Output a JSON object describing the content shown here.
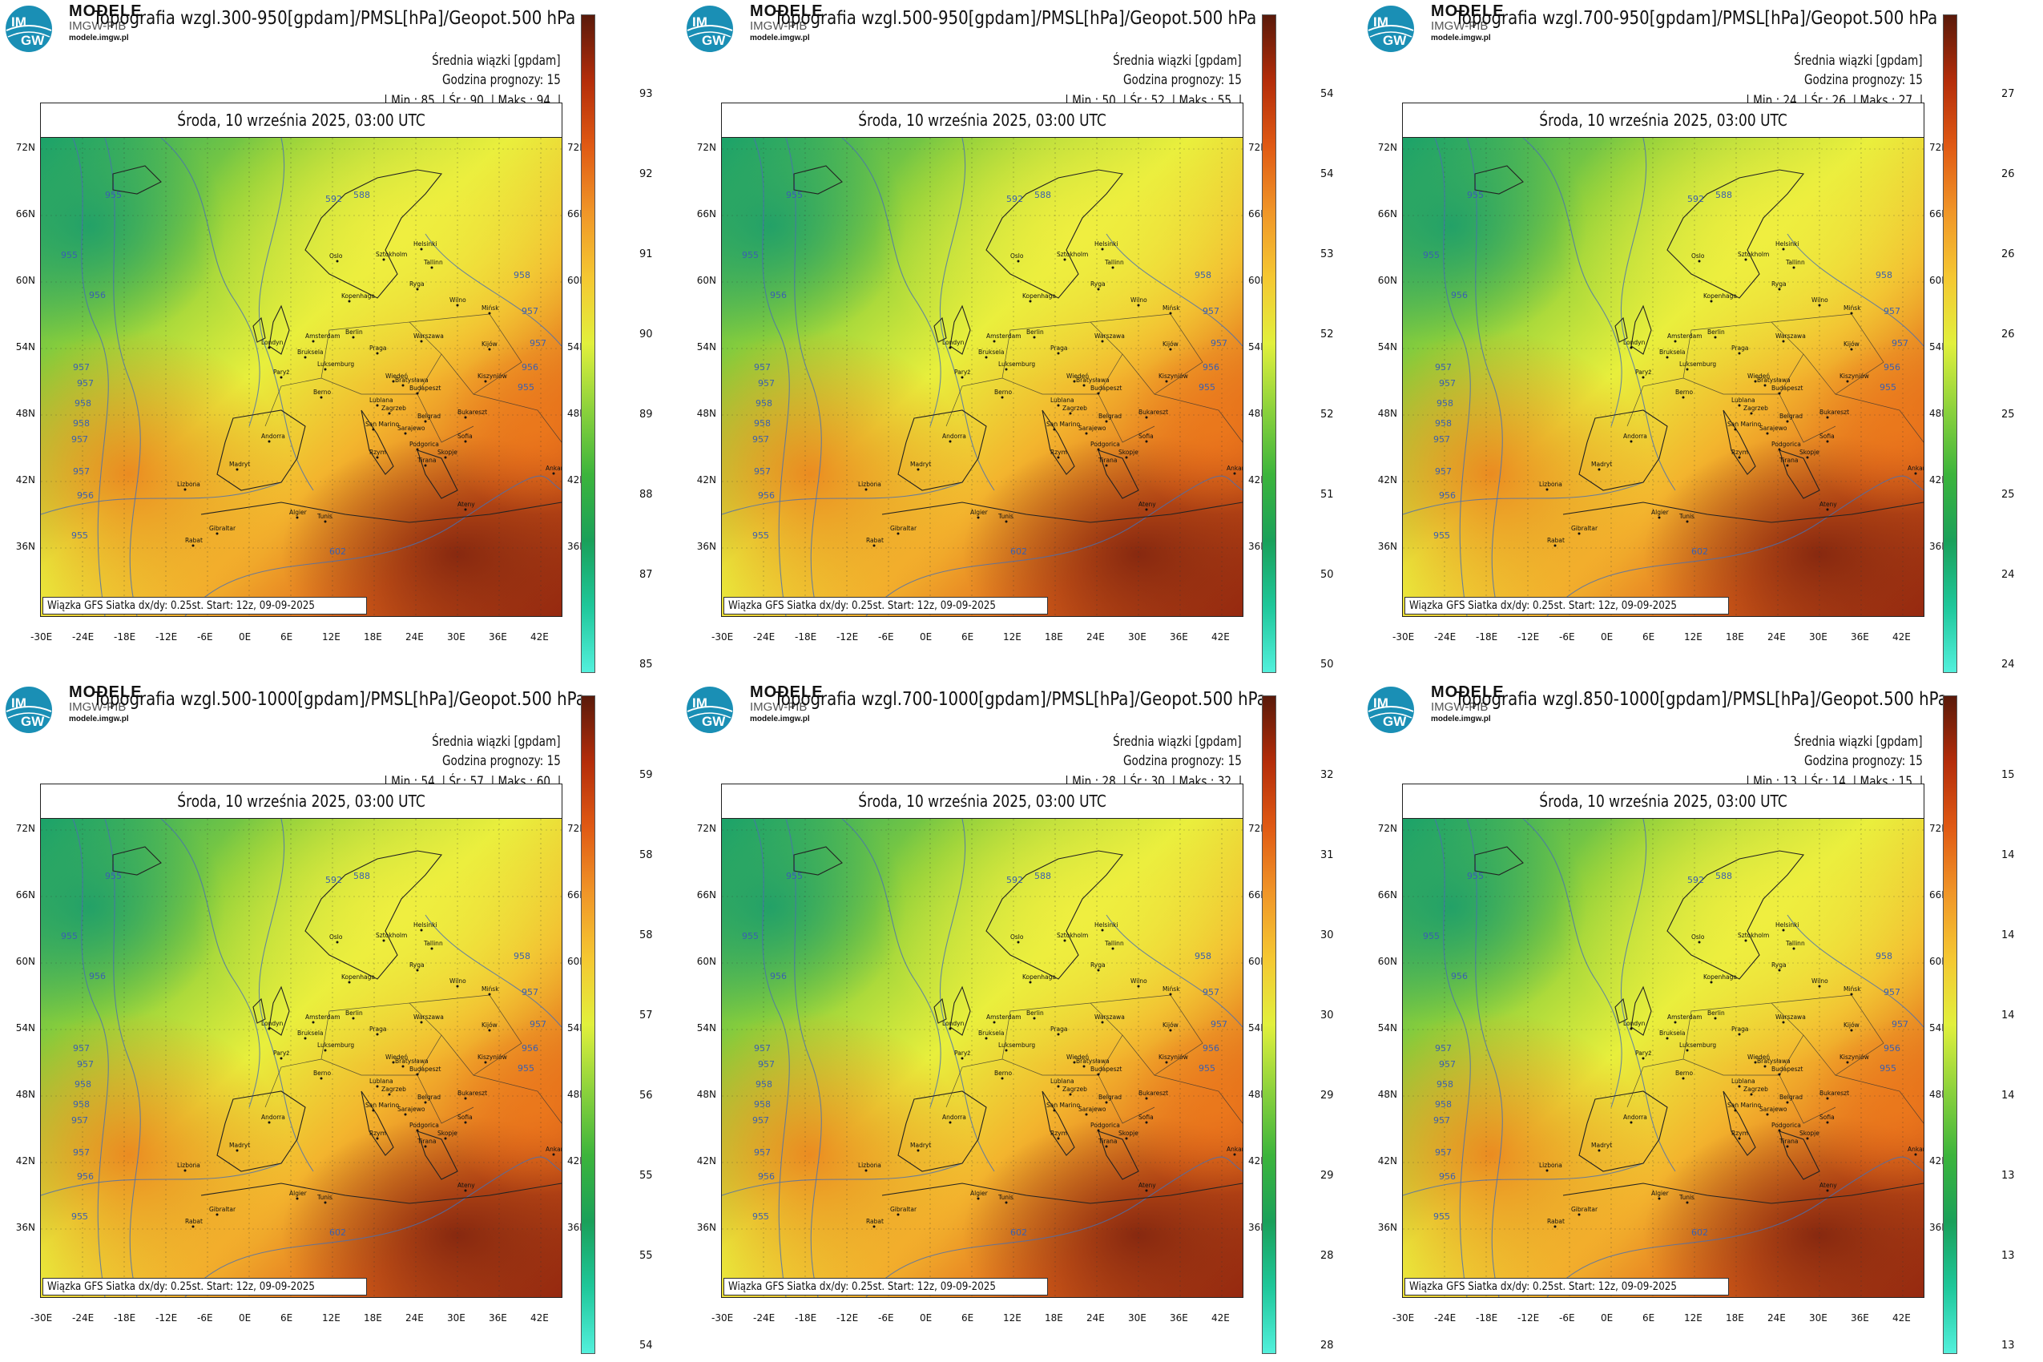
{
  "common": {
    "brand_line1": "MODELE",
    "brand_line2": "IMGW-PIB",
    "brand_url": "modele.imgw.pl",
    "logo_line1": "IM",
    "logo_line2": "GW",
    "subtitle": "Średnia wiązki [gpdam]",
    "forecast_hour": "Godzina prognozy: 15",
    "date": "Środa, 10 września 2025, 03:00 UTC",
    "footer": "Wiązka GFS Siatka dx/dy: 0.25st. Start: 12z, 09-09-2025",
    "lon_ticks": [
      "-30E",
      "-24E",
      "-18E",
      "-12E",
      "-6E",
      "0E",
      "6E",
      "12E",
      "18E",
      "24E",
      "30E",
      "36E",
      "42E"
    ],
    "lat_ticks": [
      "72N",
      "66N",
      "60N",
      "54N",
      "48N",
      "42N",
      "36N"
    ],
    "cities": [
      "Oslo",
      "Sztokholm",
      "Helsinki",
      "Tallinn",
      "Ryga",
      "Kopenhaga",
      "Wilno",
      "Mińsk",
      "Berlin",
      "Amsterdam",
      "Londyn",
      "Bruksela",
      "Luksemburg",
      "Paryż",
      "Praga",
      "Warszawa",
      "Wiedeń",
      "Bratysława",
      "Budapeszt",
      "Kijów",
      "Kiszyniów",
      "Berno",
      "Lublana",
      "Zagrzeb",
      "Belgrad",
      "Bukareszt",
      "Sarajewo",
      "Podgorica",
      "San Marino",
      "Rzym",
      "Tirana",
      "Sofia",
      "Skopje",
      "Andorra",
      "Madryt",
      "Lizbona",
      "Algier",
      "Tunis",
      "Ateny",
      "Ankara",
      "Gibraltar",
      "Rabat"
    ],
    "isoline_labels": [
      "955",
      "955",
      "956",
      "957",
      "957",
      "958",
      "958",
      "957",
      "957",
      "956",
      "955",
      "958",
      "957",
      "957",
      "956",
      "955",
      "602",
      "592",
      "588"
    ]
  },
  "panels": [
    {
      "title": "Topografia wzgl.300-950[gpdam]/PMSL[hPa]/Geopot.500 hPa",
      "min": "85.",
      "avg": "90.",
      "max": "94.",
      "colorbar": [
        "93",
        "92",
        "91",
        "90",
        "89",
        "88",
        "87",
        "85"
      ],
      "gradient": "p1"
    },
    {
      "title": "Topografia wzgl.500-950[gpdam]/PMSL[hPa]/Geopot.500 hPa",
      "min": "50.",
      "avg": "52.",
      "max": "55.",
      "colorbar": [
        "54",
        "54",
        "53",
        "52",
        "52",
        "51",
        "50",
        "50"
      ],
      "gradient": "p2"
    },
    {
      "title": "Topografia wzgl.700-950[gpdam]/PMSL[hPa]/Geopot.500 hPa",
      "min": "24.",
      "avg": "26.",
      "max": "27.",
      "colorbar": [
        "27",
        "26",
        "26",
        "26",
        "25",
        "25",
        "24",
        "24"
      ],
      "gradient": "p3"
    },
    {
      "title": "Topografia wzgl.500-1000[gpdam]/PMSL[hPa]/Geopot.500 hPa",
      "min": "54.",
      "avg": "57.",
      "max": "60.",
      "colorbar": [
        "59",
        "58",
        "58",
        "57",
        "56",
        "55",
        "55",
        "54"
      ],
      "gradient": "p4"
    },
    {
      "title": "Topografia wzgl.700-1000[gpdam]/PMSL[hPa]/Geopot.500 hPa",
      "min": "28.",
      "avg": "30.",
      "max": "32.",
      "colorbar": [
        "32",
        "31",
        "30",
        "30",
        "29",
        "29",
        "28",
        "28"
      ],
      "gradient": "p5"
    },
    {
      "title": "Topografia wzgl.850-1000[gpdam]/PMSL[hPa]/Geopot.500 hPa",
      "min": "13.",
      "avg": "14.",
      "max": "15.",
      "colorbar": [
        "15",
        "14",
        "14",
        "14",
        "14",
        "13",
        "13",
        "13"
      ],
      "gradient": "p6"
    }
  ]
}
